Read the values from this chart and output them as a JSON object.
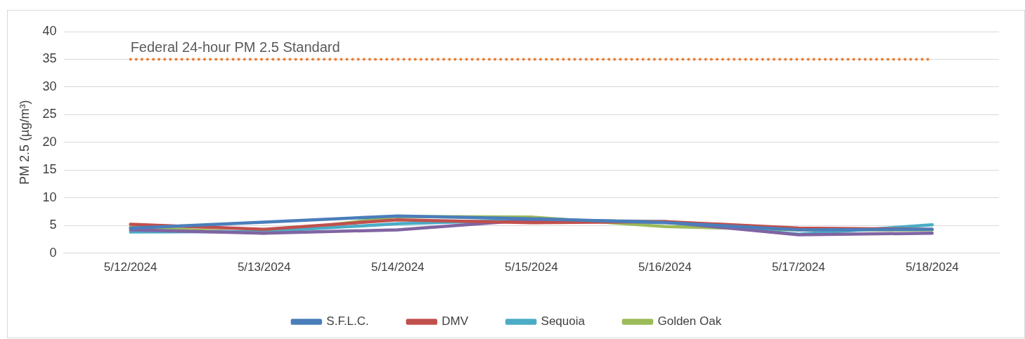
{
  "chart_data": {
    "type": "line",
    "ylabel": "PM 2.5 (µg/m³)",
    "categories": [
      "5/12/2024",
      "5/13/2024",
      "5/14/2024",
      "5/15/2024",
      "5/16/2024",
      "5/17/2024",
      "5/18/2024"
    ],
    "series": [
      {
        "name": "S.F.L.C.",
        "color": "#4a7ebb",
        "values": [
          4.5,
          5.6,
          6.7,
          6.2,
          5.5,
          4.2,
          4.3
        ]
      },
      {
        "name": "DMV",
        "color": "#c0504d",
        "values": [
          5.2,
          4.3,
          6.0,
          5.5,
          5.7,
          4.5,
          4.3
        ]
      },
      {
        "color": "#8064a2",
        "values": [
          4.2,
          3.6,
          4.2,
          6.0,
          5.6,
          3.3,
          3.6
        ]
      },
      {
        "name": "Sequoia",
        "color": "#4bacc6",
        "values": [
          3.8,
          3.9,
          5.3,
          6.0,
          5.7,
          3.4,
          5.1
        ]
      },
      {
        "name": "Golden Oak",
        "color": "#9bbb59",
        "values": [
          4.7,
          3.6,
          6.6,
          6.5,
          4.8,
          4.2,
          4.2
        ]
      }
    ],
    "ylim": [
      0,
      40
    ],
    "yticks": [
      0,
      5,
      10,
      15,
      20,
      25,
      30,
      35,
      40
    ],
    "grid": "y",
    "legend": "bottom",
    "marker": "none",
    "line_style": "solid",
    "ref_lines": [
      {
        "axis": "y",
        "value": 35,
        "label": "Federal 24-hour PM 2.5 Standard",
        "color": "#ed7d31",
        "line_style": "dotted"
      }
    ]
  }
}
